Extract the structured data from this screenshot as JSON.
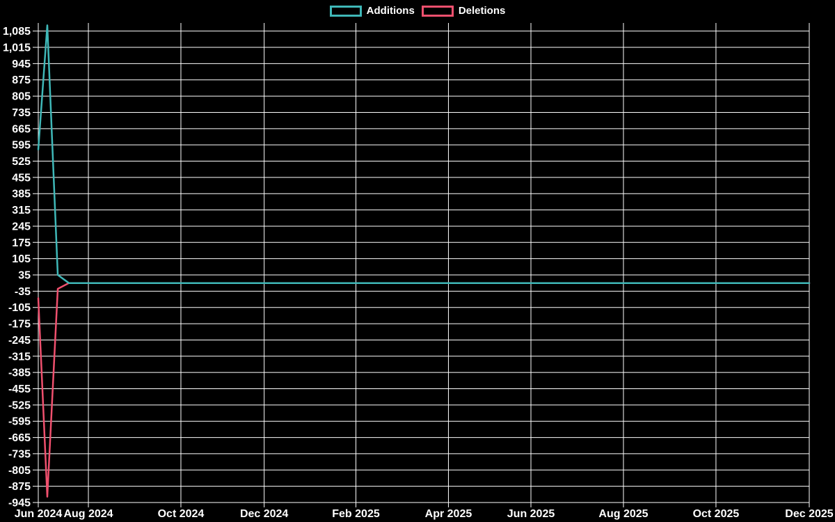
{
  "page": {
    "background": "#000000"
  },
  "legend": {
    "items": [
      {
        "label": "Additions",
        "color": "#3fb8b8"
      },
      {
        "label": "Deletions",
        "color": "#f0506e"
      }
    ]
  },
  "chart_data": {
    "type": "line",
    "title": "",
    "background": "#000000",
    "grid": true,
    "grid_color": "#ffffff",
    "text_color": "#ffffff",
    "legend_position": "top-center",
    "x_encoding": "t is the fraction of the x-axis span from Jun 2024 (0) to Dec 2025 (1); weekly commit data",
    "x_axis": {
      "ticks": [
        {
          "label": "Jun 2024",
          "t": 0.0
        },
        {
          "label": "Aug 2024",
          "t": 0.065
        },
        {
          "label": "Oct 2024",
          "t": 0.185
        },
        {
          "label": "Dec 2024",
          "t": 0.293
        },
        {
          "label": "Feb 2025",
          "t": 0.412
        },
        {
          "label": "Apr 2025",
          "t": 0.532
        },
        {
          "label": "Jun 2025",
          "t": 0.639
        },
        {
          "label": "Aug 2025",
          "t": 0.759
        },
        {
          "label": "Oct 2025",
          "t": 0.879
        },
        {
          "label": "Dec 2025",
          "t": 1.0
        }
      ]
    },
    "y_axis": {
      "ylim": [
        -945,
        1120
      ],
      "ticks": [
        {
          "v": 1085,
          "label": "1,085"
        },
        {
          "v": 1015,
          "label": "1,015"
        },
        {
          "v": 945,
          "label": "945"
        },
        {
          "v": 875,
          "label": "875"
        },
        {
          "v": 805,
          "label": "805"
        },
        {
          "v": 735,
          "label": "735"
        },
        {
          "v": 665,
          "label": "665"
        },
        {
          "v": 595,
          "label": "595"
        },
        {
          "v": 525,
          "label": "525"
        },
        {
          "v": 455,
          "label": "455"
        },
        {
          "v": 385,
          "label": "385"
        },
        {
          "v": 315,
          "label": "315"
        },
        {
          "v": 245,
          "label": "245"
        },
        {
          "v": 175,
          "label": "175"
        },
        {
          "v": 105,
          "label": "105"
        },
        {
          "v": 35,
          "label": "35"
        },
        {
          "v": -35,
          "label": "-35"
        },
        {
          "v": -105,
          "label": "-105"
        },
        {
          "v": -175,
          "label": "-175"
        },
        {
          "v": -245,
          "label": "-245"
        },
        {
          "v": -315,
          "label": "-315"
        },
        {
          "v": -385,
          "label": "-385"
        },
        {
          "v": -455,
          "label": "-455"
        },
        {
          "v": -525,
          "label": "-525"
        },
        {
          "v": -595,
          "label": "-595"
        },
        {
          "v": -665,
          "label": "-665"
        },
        {
          "v": -735,
          "label": "-735"
        },
        {
          "v": -805,
          "label": "-805"
        },
        {
          "v": -875,
          "label": "-875"
        },
        {
          "v": -945,
          "label": "-945"
        }
      ]
    },
    "series": [
      {
        "name": "Additions",
        "color": "#3fb8b8",
        "points": [
          {
            "t": 0.0,
            "v": 575
          },
          {
            "t": 0.0117,
            "v": 1110
          },
          {
            "t": 0.0253,
            "v": 35
          },
          {
            "t": 0.0397,
            "v": 0
          },
          {
            "t": 1.0,
            "v": 0
          }
        ]
      },
      {
        "name": "Deletions",
        "color": "#f0506e",
        "points": [
          {
            "t": 0.0,
            "v": -65
          },
          {
            "t": 0.0117,
            "v": -920
          },
          {
            "t": 0.0253,
            "v": -25
          },
          {
            "t": 0.0397,
            "v": 0
          },
          {
            "t": 1.0,
            "v": 0
          }
        ]
      }
    ]
  }
}
